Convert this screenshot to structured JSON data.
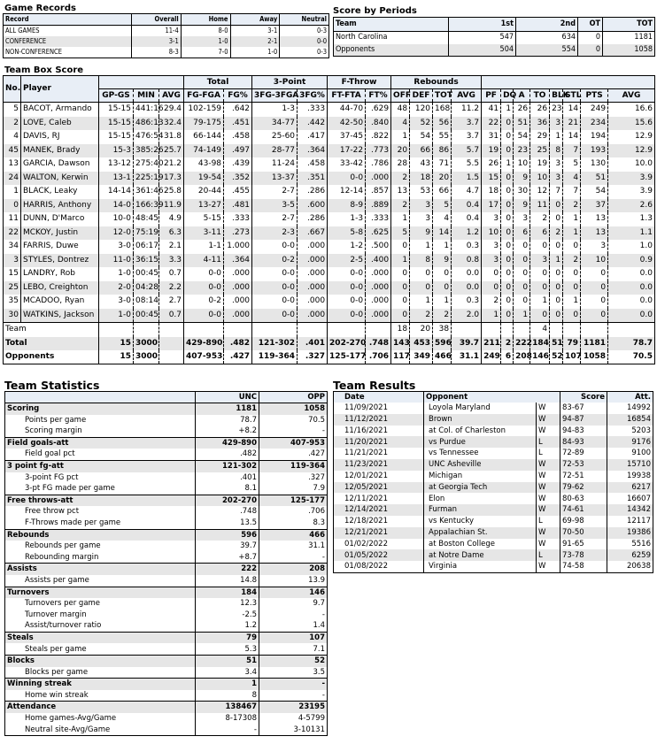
{
  "game_records": {
    "title": "Game Records",
    "headers": [
      "Record",
      "Overall",
      "Home",
      "Away",
      "Neutral"
    ],
    "rows": [
      [
        "ALL GAMES",
        "11-4",
        "8-0",
        "3-1",
        "0-3"
      ],
      [
        "CONFERENCE",
        "3-1",
        "1-0",
        "2-1",
        "0-0"
      ],
      [
        "NON-CONFERENCE",
        "8-3",
        "7-0",
        "1-0",
        "0-3"
      ]
    ]
  },
  "score_by_periods": {
    "title": "Score by Periods",
    "headers": [
      "Team",
      "1st",
      "2nd",
      "OT",
      "TOT"
    ],
    "rows": [
      [
        "North Carolina",
        "547",
        "634",
        "0",
        "1181"
      ],
      [
        "Opponents",
        "504",
        "554",
        "0",
        "1058"
      ]
    ]
  },
  "box_score": {
    "title": "Team Box Score",
    "groups": [
      "No.",
      "Player",
      "",
      "Total",
      "3-Point",
      "F-Throw",
      "Rebounds",
      ""
    ],
    "columns": [
      "GP-GS",
      "MIN",
      "AVG",
      "FG-FGA",
      "FG%",
      "3FG-3FGA",
      "3FG%",
      "FT-FTA",
      "FT%",
      "OFF",
      "DEF",
      "TOT",
      "AVG",
      "PF",
      "DQ",
      "A",
      "TO",
      "BLK",
      "STL",
      "PTS",
      "AVG"
    ],
    "players": [
      [
        "5",
        "BACOT, Armando",
        "15-15",
        "441:16",
        "29.4",
        "102-159",
        ".642",
        "1-3",
        ".333",
        "44-70",
        ".629",
        "48",
        "120",
        "168",
        "11.2",
        "41",
        "1",
        "26",
        "26",
        "23",
        "14",
        "249",
        "16.6"
      ],
      [
        "2",
        "LOVE, Caleb",
        "15-15",
        "486:13",
        "32.4",
        "79-175",
        ".451",
        "34-77",
        ".442",
        "42-50",
        ".840",
        "4",
        "52",
        "56",
        "3.7",
        "22",
        "0",
        "51",
        "36",
        "3",
        "21",
        "234",
        "15.6"
      ],
      [
        "4",
        "DAVIS, RJ",
        "15-15",
        "476:54",
        "31.8",
        "66-144",
        ".458",
        "25-60",
        ".417",
        "37-45",
        ".822",
        "1",
        "54",
        "55",
        "3.7",
        "31",
        "0",
        "54",
        "29",
        "1",
        "14",
        "194",
        "12.9"
      ],
      [
        "45",
        "MANEK, Brady",
        "15-3",
        "385:26",
        "25.7",
        "74-149",
        ".497",
        "28-77",
        ".364",
        "17-22",
        ".773",
        "20",
        "66",
        "86",
        "5.7",
        "19",
        "0",
        "23",
        "25",
        "8",
        "7",
        "193",
        "12.9"
      ],
      [
        "13",
        "GARCIA, Dawson",
        "13-12",
        "275:40",
        "21.2",
        "43-98",
        ".439",
        "11-24",
        ".458",
        "33-42",
        ".786",
        "28",
        "43",
        "71",
        "5.5",
        "26",
        "1",
        "10",
        "19",
        "3",
        "5",
        "130",
        "10.0"
      ],
      [
        "24",
        "WALTON, Kerwin",
        "13-1",
        "225:19",
        "17.3",
        "19-54",
        ".352",
        "13-37",
        ".351",
        "0-0",
        ".000",
        "2",
        "18",
        "20",
        "1.5",
        "15",
        "0",
        "9",
        "10",
        "3",
        "4",
        "51",
        "3.9"
      ],
      [
        "1",
        "BLACK, Leaky",
        "14-14",
        "361:46",
        "25.8",
        "20-44",
        ".455",
        "2-7",
        ".286",
        "12-14",
        ".857",
        "13",
        "53",
        "66",
        "4.7",
        "18",
        "0",
        "30",
        "12",
        "7",
        "7",
        "54",
        "3.9"
      ],
      [
        "0",
        "HARRIS, Anthony",
        "14-0",
        "166:39",
        "11.9",
        "13-27",
        ".481",
        "3-5",
        ".600",
        "8-9",
        ".889",
        "2",
        "3",
        "5",
        "0.4",
        "17",
        "0",
        "9",
        "11",
        "0",
        "2",
        "37",
        "2.6"
      ],
      [
        "11",
        "DUNN, D'Marco",
        "10-0",
        "48:45",
        "4.9",
        "5-15",
        ".333",
        "2-7",
        ".286",
        "1-3",
        ".333",
        "1",
        "3",
        "4",
        "0.4",
        "3",
        "0",
        "3",
        "2",
        "0",
        "1",
        "13",
        "1.3"
      ],
      [
        "22",
        "MCKOY, Justin",
        "12-0",
        "75:19",
        "6.3",
        "3-11",
        ".273",
        "2-3",
        ".667",
        "5-8",
        ".625",
        "5",
        "9",
        "14",
        "1.2",
        "10",
        "0",
        "6",
        "6",
        "2",
        "1",
        "13",
        "1.1"
      ],
      [
        "34",
        "FARRIS, Duwe",
        "3-0",
        "06:17",
        "2.1",
        "1-1",
        "1.000",
        "0-0",
        ".000",
        "1-2",
        ".500",
        "0",
        "1",
        "1",
        "0.3",
        "3",
        "0",
        "0",
        "0",
        "0",
        "0",
        "3",
        "1.0"
      ],
      [
        "3",
        "STYLES, Dontrez",
        "11-0",
        "36:15",
        "3.3",
        "4-11",
        ".364",
        "0-2",
        ".000",
        "2-5",
        ".400",
        "1",
        "8",
        "9",
        "0.8",
        "3",
        "0",
        "0",
        "3",
        "1",
        "2",
        "10",
        "0.9"
      ],
      [
        "15",
        "LANDRY, Rob",
        "1-0",
        "00:45",
        "0.7",
        "0-0",
        ".000",
        "0-0",
        ".000",
        "0-0",
        ".000",
        "0",
        "0",
        "0",
        "0.0",
        "0",
        "0",
        "0",
        "0",
        "0",
        "0",
        "0",
        "0.0"
      ],
      [
        "25",
        "LEBO, Creighton",
        "2-0",
        "04:28",
        "2.2",
        "0-0",
        ".000",
        "0-0",
        ".000",
        "0-0",
        ".000",
        "0",
        "0",
        "0",
        "0.0",
        "0",
        "0",
        "0",
        "0",
        "0",
        "0",
        "0",
        "0.0"
      ],
      [
        "35",
        "MCADOO, Ryan",
        "3-0",
        "08:14",
        "2.7",
        "0-2",
        ".000",
        "0-0",
        ".000",
        "0-0",
        ".000",
        "0",
        "1",
        "1",
        "0.3",
        "2",
        "0",
        "0",
        "1",
        "0",
        "1",
        "0",
        "0.0"
      ],
      [
        "30",
        "WATKINS, Jackson",
        "1-0",
        "00:45",
        "0.7",
        "0-0",
        ".000",
        "0-0",
        ".000",
        "0-0",
        ".000",
        "0",
        "2",
        "2",
        "2.0",
        "1",
        "0",
        "1",
        "0",
        "0",
        "0",
        "0",
        "0.0"
      ]
    ],
    "team": [
      "",
      "Team",
      "",
      "",
      "",
      "",
      "",
      "",
      "",
      "",
      "",
      "18",
      "20",
      "38",
      "",
      "",
      "",
      "",
      "4",
      "",
      "",
      "",
      ""
    ],
    "total": [
      "",
      "Total",
      "15",
      "3000",
      "",
      "429-890",
      ".482",
      "121-302",
      ".401",
      "202-270",
      ".748",
      "143",
      "453",
      "596",
      "39.7",
      "211",
      "2",
      "222",
      "184",
      "51",
      "79",
      "1181",
      "78.7"
    ],
    "opponents": [
      "",
      "Opponents",
      "15",
      "3000",
      "",
      "407-953",
      ".427",
      "119-364",
      ".327",
      "125-177",
      ".706",
      "117",
      "349",
      "466",
      "31.1",
      "249",
      "6",
      "208",
      "146",
      "52",
      "107",
      "1058",
      "70.5"
    ]
  },
  "team_statistics": {
    "title": "Team Statistics",
    "headers": [
      "",
      "UNC",
      "OPP"
    ],
    "sections": [
      {
        "row": [
          "Scoring",
          "1181",
          "1058"
        ],
        "items": [
          [
            "Points per game",
            "78.7",
            "70.5"
          ],
          [
            "Scoring margin",
            "+8.2",
            "-"
          ]
        ]
      },
      {
        "row": [
          "Field goals-att",
          "429-890",
          "407-953"
        ],
        "items": [
          [
            "Field goal pct",
            ".482",
            ".427"
          ]
        ]
      },
      {
        "row": [
          "3 point fg-att",
          "121-302",
          "119-364"
        ],
        "items": [
          [
            "3-point FG pct",
            ".401",
            ".327"
          ],
          [
            "3-pt FG made per game",
            "8.1",
            "7.9"
          ]
        ]
      },
      {
        "row": [
          "Free throws-att",
          "202-270",
          "125-177"
        ],
        "items": [
          [
            "Free throw pct",
            ".748",
            ".706"
          ],
          [
            "F-Throws made per game",
            "13.5",
            "8.3"
          ]
        ]
      },
      {
        "row": [
          "Rebounds",
          "596",
          "466"
        ],
        "items": [
          [
            "Rebounds per game",
            "39.7",
            "31.1"
          ],
          [
            "Rebounding margin",
            "+8.7",
            "-"
          ]
        ]
      },
      {
        "row": [
          "Assists",
          "222",
          "208"
        ],
        "items": [
          [
            "Assists per game",
            "14.8",
            "13.9"
          ]
        ]
      },
      {
        "row": [
          "Turnovers",
          "184",
          "146"
        ],
        "items": [
          [
            "Turnovers per game",
            "12.3",
            "9.7"
          ],
          [
            "Turnover margin",
            "-2.5",
            "-"
          ],
          [
            "Assist/turnover ratio",
            "1.2",
            "1.4"
          ]
        ]
      },
      {
        "row": [
          "Steals",
          "79",
          "107"
        ],
        "items": [
          [
            "Steals per game",
            "5.3",
            "7.1"
          ]
        ]
      },
      {
        "row": [
          "Blocks",
          "51",
          "52"
        ],
        "items": [
          [
            "Blocks per game",
            "3.4",
            "3.5"
          ]
        ]
      },
      {
        "row": [
          "Winning streak",
          "1",
          "-"
        ],
        "items": [
          [
            "Home win streak",
            "8",
            "-"
          ]
        ]
      },
      {
        "row": [
          "Attendance",
          "138467",
          "23195"
        ],
        "items": [
          [
            "Home games-Avg/Game",
            "8-17308",
            "4-5799"
          ],
          [
            "Neutral site-Avg/Game",
            "-",
            "3-10131"
          ]
        ]
      }
    ]
  },
  "team_results": {
    "title": "Team Results",
    "headers": [
      "Date",
      "Opponent",
      "Score",
      "Att."
    ],
    "rows": [
      [
        "11/09/2021",
        "Loyola Maryland",
        "W",
        "83-67",
        "14992"
      ],
      [
        "11/12/2021",
        "Brown",
        "W",
        "94-87",
        "16854"
      ],
      [
        "11/16/2021",
        "at Col. of Charleston",
        "W",
        "94-83",
        "5203"
      ],
      [
        "11/20/2021",
        "vs Purdue",
        "L",
        "84-93",
        "9176"
      ],
      [
        "11/21/2021",
        "vs Tennessee",
        "L",
        "72-89",
        "9100"
      ],
      [
        "11/23/2021",
        "UNC Asheville",
        "W",
        "72-53",
        "15710"
      ],
      [
        "12/01/2021",
        "Michigan",
        "W",
        "72-51",
        "19938"
      ],
      [
        "12/05/2021",
        "at Georgia Tech",
        "W",
        "79-62",
        "6217"
      ],
      [
        "12/11/2021",
        "Elon",
        "W",
        "80-63",
        "16607"
      ],
      [
        "12/14/2021",
        "Furman",
        "W",
        "74-61",
        "14342"
      ],
      [
        "12/18/2021",
        "vs Kentucky",
        "L",
        "69-98",
        "12117"
      ],
      [
        "12/21/2021",
        "Appalachian St.",
        "W",
        "70-50",
        "19386"
      ],
      [
        "01/02/2022",
        "at Boston College",
        "W",
        "91-65",
        "5516"
      ],
      [
        "01/05/2022",
        "at Notre Dame",
        "L",
        "73-78",
        "6259"
      ],
      [
        "01/08/2022",
        "Virginia",
        "W",
        "74-58",
        "20638"
      ]
    ]
  }
}
